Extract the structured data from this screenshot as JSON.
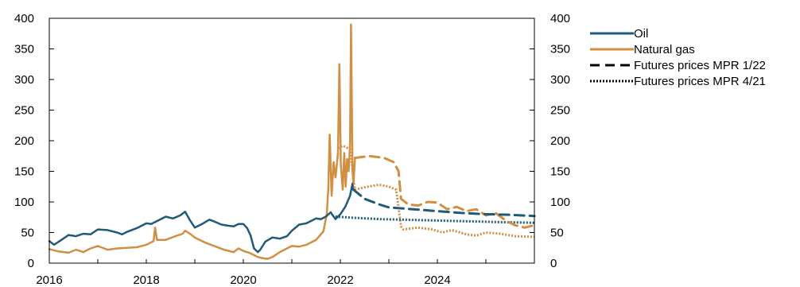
{
  "chart_data": {
    "type": "line",
    "xlim": [
      2016,
      2026
    ],
    "ylim_left": [
      0,
      400
    ],
    "ylim_right": [
      0,
      400
    ],
    "x_ticks": [
      "2016",
      "2018",
      "2020",
      "2022",
      "2024"
    ],
    "x_tick_values": [
      2016,
      2018,
      2020,
      2022,
      2024
    ],
    "y_ticks": [
      "0",
      "50",
      "100",
      "150",
      "200",
      "250",
      "300",
      "350",
      "400"
    ],
    "y_tick_values": [
      0,
      50,
      100,
      150,
      200,
      250,
      300,
      350,
      400
    ],
    "legend_position": "top-right",
    "colors": {
      "oil": "#215a78",
      "gas": "#d08f43"
    },
    "series": [
      {
        "key": "oil",
        "name": "Oil",
        "style": "solid",
        "points": [
          [
            2016.0,
            36
          ],
          [
            2016.1,
            30
          ],
          [
            2016.25,
            38
          ],
          [
            2016.4,
            46
          ],
          [
            2016.55,
            44
          ],
          [
            2016.7,
            48
          ],
          [
            2016.85,
            47
          ],
          [
            2017.0,
            55
          ],
          [
            2017.2,
            54
          ],
          [
            2017.4,
            50
          ],
          [
            2017.5,
            47
          ],
          [
            2017.6,
            51
          ],
          [
            2017.8,
            57
          ],
          [
            2018.0,
            65
          ],
          [
            2018.1,
            64
          ],
          [
            2018.25,
            70
          ],
          [
            2018.4,
            76
          ],
          [
            2018.55,
            73
          ],
          [
            2018.7,
            78
          ],
          [
            2018.8,
            84
          ],
          [
            2018.9,
            70
          ],
          [
            2019.0,
            58
          ],
          [
            2019.15,
            64
          ],
          [
            2019.3,
            71
          ],
          [
            2019.4,
            68
          ],
          [
            2019.55,
            63
          ],
          [
            2019.7,
            61
          ],
          [
            2019.8,
            60
          ],
          [
            2019.9,
            64
          ],
          [
            2020.0,
            64
          ],
          [
            2020.08,
            57
          ],
          [
            2020.15,
            45
          ],
          [
            2020.22,
            24
          ],
          [
            2020.3,
            18
          ],
          [
            2020.35,
            22
          ],
          [
            2020.45,
            35
          ],
          [
            2020.6,
            42
          ],
          [
            2020.75,
            40
          ],
          [
            2020.9,
            44
          ],
          [
            2021.0,
            53
          ],
          [
            2021.15,
            63
          ],
          [
            2021.3,
            65
          ],
          [
            2021.5,
            73
          ],
          [
            2021.6,
            72
          ],
          [
            2021.7,
            76
          ],
          [
            2021.8,
            83
          ],
          [
            2021.9,
            72
          ],
          [
            2022.0,
            80
          ],
          [
            2022.1,
            92
          ],
          [
            2022.2,
            110
          ],
          [
            2022.25,
            130
          ],
          [
            2022.27,
            120
          ]
        ]
      },
      {
        "key": "gas",
        "name": "Natural gas",
        "style": "solid",
        "points": [
          [
            2016.0,
            23
          ],
          [
            2016.2,
            19
          ],
          [
            2016.4,
            17
          ],
          [
            2016.55,
            22
          ],
          [
            2016.7,
            18
          ],
          [
            2016.85,
            24
          ],
          [
            2017.0,
            28
          ],
          [
            2017.2,
            22
          ],
          [
            2017.4,
            24
          ],
          [
            2017.6,
            25
          ],
          [
            2017.8,
            26
          ],
          [
            2018.0,
            30
          ],
          [
            2018.15,
            36
          ],
          [
            2018.18,
            58
          ],
          [
            2018.22,
            38
          ],
          [
            2018.4,
            38
          ],
          [
            2018.6,
            44
          ],
          [
            2018.75,
            48
          ],
          [
            2018.8,
            53
          ],
          [
            2018.9,
            48
          ],
          [
            2019.0,
            42
          ],
          [
            2019.2,
            34
          ],
          [
            2019.4,
            28
          ],
          [
            2019.6,
            22
          ],
          [
            2019.8,
            18
          ],
          [
            2019.9,
            24
          ],
          [
            2020.0,
            20
          ],
          [
            2020.15,
            16
          ],
          [
            2020.3,
            10
          ],
          [
            2020.4,
            8
          ],
          [
            2020.5,
            7
          ],
          [
            2020.6,
            10
          ],
          [
            2020.75,
            18
          ],
          [
            2020.9,
            24
          ],
          [
            2021.0,
            28
          ],
          [
            2021.15,
            27
          ],
          [
            2021.3,
            30
          ],
          [
            2021.5,
            38
          ],
          [
            2021.65,
            52
          ],
          [
            2021.72,
            80
          ],
          [
            2021.75,
            120
          ],
          [
            2021.78,
            210
          ],
          [
            2021.82,
            110
          ],
          [
            2021.86,
            165
          ],
          [
            2021.9,
            140
          ],
          [
            2021.95,
            180
          ],
          [
            2021.98,
            325
          ],
          [
            2022.01,
            160
          ],
          [
            2022.05,
            120
          ],
          [
            2022.08,
            180
          ],
          [
            2022.11,
            125
          ],
          [
            2022.14,
            170
          ],
          [
            2022.17,
            150
          ],
          [
            2022.2,
            195
          ],
          [
            2022.22,
            390
          ],
          [
            2022.25,
            150
          ],
          [
            2022.27,
            130
          ],
          [
            2022.3,
            170
          ]
        ]
      },
      {
        "key": "oil_fut_122",
        "name": "Futures prices MPR 1/22",
        "color_key": "oil",
        "style": "dashed",
        "points": [
          [
            2022.27,
            120
          ],
          [
            2022.5,
            105
          ],
          [
            2022.8,
            96
          ],
          [
            2023.0,
            91
          ],
          [
            2023.5,
            88
          ],
          [
            2024.0,
            85
          ],
          [
            2024.5,
            82
          ],
          [
            2025.0,
            80
          ],
          [
            2025.5,
            79
          ],
          [
            2026.0,
            77
          ]
        ]
      },
      {
        "key": "gas_fut_122",
        "name": "Futures prices MPR 1/22",
        "color_key": "gas",
        "style": "dashed",
        "points": [
          [
            2022.3,
            172
          ],
          [
            2022.6,
            175
          ],
          [
            2022.9,
            172
          ],
          [
            2023.1,
            165
          ],
          [
            2023.2,
            150
          ],
          [
            2023.25,
            105
          ],
          [
            2023.4,
            96
          ],
          [
            2023.6,
            94
          ],
          [
            2023.8,
            100
          ],
          [
            2024.0,
            99
          ],
          [
            2024.2,
            88
          ],
          [
            2024.4,
            92
          ],
          [
            2024.6,
            85
          ],
          [
            2024.8,
            88
          ],
          [
            2025.0,
            78
          ],
          [
            2025.2,
            82
          ],
          [
            2025.4,
            70
          ],
          [
            2025.6,
            62
          ],
          [
            2025.8,
            58
          ],
          [
            2026.0,
            62
          ]
        ]
      },
      {
        "key": "oil_fut_421",
        "name": "Futures prices MPR 4/21",
        "color_key": "oil",
        "style": "dotted",
        "points": [
          [
            2021.9,
            76
          ],
          [
            2022.3,
            74
          ],
          [
            2022.8,
            72
          ],
          [
            2023.3,
            71
          ],
          [
            2023.8,
            70
          ],
          [
            2024.3,
            69
          ],
          [
            2024.8,
            68
          ],
          [
            2025.3,
            67
          ],
          [
            2026.0,
            66
          ]
        ]
      },
      {
        "key": "gas_fut_421",
        "name": "Futures prices MPR 4/21",
        "color_key": "gas",
        "style": "dotted",
        "points": [
          [
            2021.95,
            188
          ],
          [
            2022.05,
            192
          ],
          [
            2022.2,
            186
          ],
          [
            2022.3,
            120
          ],
          [
            2022.5,
            124
          ],
          [
            2022.8,
            128
          ],
          [
            2023.0,
            125
          ],
          [
            2023.15,
            120
          ],
          [
            2023.25,
            60
          ],
          [
            2023.3,
            55
          ],
          [
            2023.6,
            58
          ],
          [
            2023.9,
            55
          ],
          [
            2024.1,
            50
          ],
          [
            2024.3,
            54
          ],
          [
            2024.6,
            47
          ],
          [
            2024.8,
            45
          ],
          [
            2025.0,
            50
          ],
          [
            2025.3,
            48
          ],
          [
            2025.6,
            44
          ],
          [
            2026.0,
            43
          ]
        ]
      }
    ],
    "legend": [
      {
        "label": "Oil",
        "color_key": "oil",
        "style": "solid"
      },
      {
        "label": "Natural gas",
        "color_key": "gas",
        "style": "solid"
      },
      {
        "label": "Futures prices MPR 1/22",
        "color_key": "black",
        "style": "dashed"
      },
      {
        "label": "Futures prices MPR 4/21",
        "color_key": "black",
        "style": "dotted"
      }
    ]
  }
}
